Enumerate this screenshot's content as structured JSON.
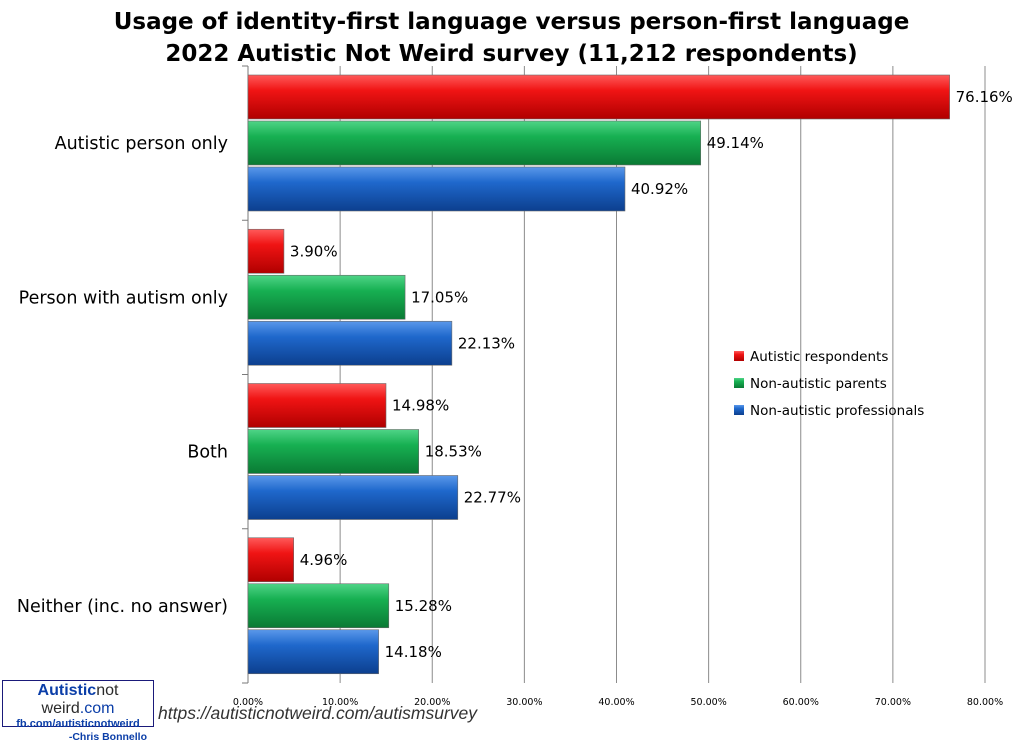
{
  "title_lines": [
    "Usage of identity-first language versus person-first language",
    "2022 Autistic Not Weird survey (11,212 respondents)"
  ],
  "chart_data": {
    "type": "bar",
    "orientation": "horizontal",
    "title": "Usage of identity-first language versus person-first language — 2022 Autistic Not Weird survey (11,212 respondents)",
    "categories": [
      "Autistic person only",
      "Person with autism only",
      "Both",
      "Neither (inc. no answer)"
    ],
    "series": [
      {
        "name": "Autistic respondents",
        "color": "#e00000",
        "values": [
          76.16,
          3.9,
          14.98,
          4.96
        ],
        "labels": [
          "76.16%",
          "3.90%",
          "14.98%",
          "4.96%"
        ]
      },
      {
        "name": "Non-autistic parents",
        "color": "#12a84a",
        "values": [
          49.14,
          17.05,
          18.53,
          15.28
        ],
        "labels": [
          "49.14%",
          "17.05%",
          "18.53%",
          "15.28%"
        ]
      },
      {
        "name": "Non-autistic professionals",
        "color": "#1a63c6",
        "values": [
          40.92,
          22.13,
          22.77,
          14.18
        ],
        "labels": [
          "40.92%",
          "22.13%",
          "22.77%",
          "14.18%"
        ]
      }
    ],
    "xlim": [
      0,
      80
    ],
    "xticks": [
      0,
      10,
      20,
      30,
      40,
      50,
      60,
      70,
      80
    ],
    "xtick_labels": [
      "0.00%",
      "10.00%",
      "20.00%",
      "30.00%",
      "40.00%",
      "50.00%",
      "60.00%",
      "70.00%",
      "80.00%"
    ],
    "grid": true,
    "legend_position": "center-right"
  },
  "branding": {
    "name_part1": "Autistic",
    "name_part2": "not weird",
    "name_part3": ".com",
    "facebook": "fb.com/autisticnotweird",
    "author": "-Chris Bonnello"
  },
  "url": "https://autisticnotweird.com/autismsurvey"
}
